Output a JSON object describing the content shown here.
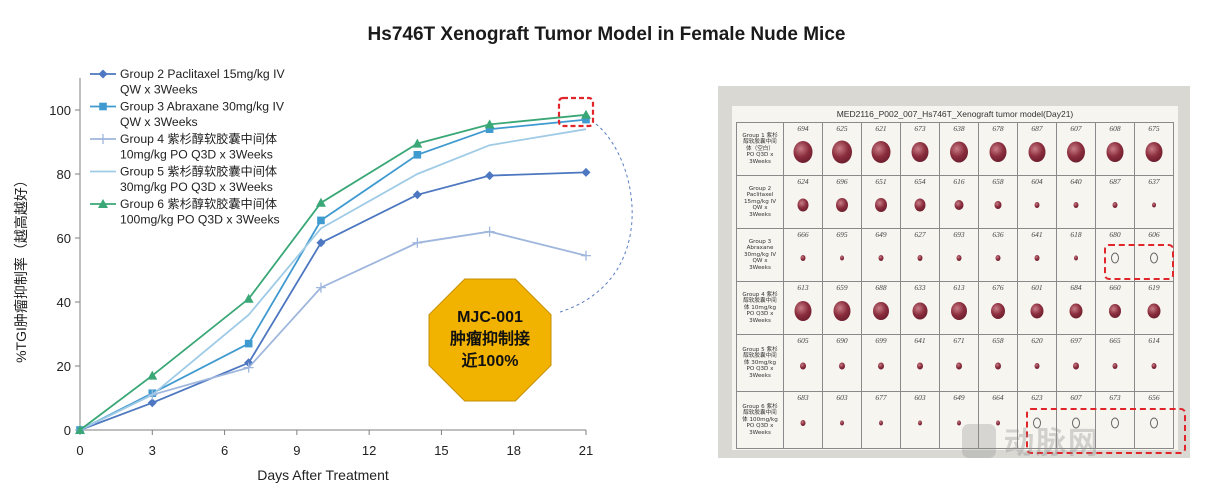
{
  "page": {
    "title": "Hs746T Xenograft Tumor Model in Female Nude Mice"
  },
  "colors": {
    "group2": "#4d77c0",
    "group3": "#3f9ad0",
    "group4": "#9fb6dd",
    "group5": "#9fcbe6",
    "group6": "#3aa776",
    "highlight": "#e0262b",
    "callout": "#f2b200"
  },
  "chart_data": {
    "type": "line",
    "title": "",
    "xlabel": "Days After Treatment",
    "ylabel": "%TGI肿瘤抑制率（越高越好）",
    "x": [
      0,
      3,
      7,
      10,
      14,
      17,
      21
    ],
    "xticks": [
      0,
      3,
      6,
      9,
      12,
      15,
      18,
      21
    ],
    "yticks": [
      0,
      20,
      40,
      60,
      80,
      100
    ],
    "xlim": [
      0,
      21
    ],
    "ylim": [
      0,
      110
    ],
    "legend_position": "top-left",
    "series": [
      {
        "name": "Group 2 Paclitaxel 15mg/kg IV QW x 3Weeks",
        "legend_lines": [
          "Group 2 Paclitaxel 15mg/kg IV",
          "QW x 3Weeks"
        ],
        "marker": "diamond",
        "color_key": "group2",
        "values": [
          0,
          8.5,
          21,
          58.5,
          73.5,
          79.5,
          80.5
        ]
      },
      {
        "name": "Group 3 Abraxane 30mg/kg IV QW x 3Weeks",
        "legend_lines": [
          "Group 3 Abraxane 30mg/kg IV",
          "QW x 3Weeks"
        ],
        "marker": "square",
        "color_key": "group3",
        "values": [
          0,
          11.5,
          27,
          65.5,
          86,
          94,
          97
        ]
      },
      {
        "name": "Group 4 紫杉醇软胶囊中间体 10mg/kg PO Q3D x 3Weeks",
        "legend_lines": [
          "Group 4 紫杉醇软胶囊中间体",
          "10mg/kg PO Q3D x 3Weeks"
        ],
        "marker": "plus",
        "color_key": "group4",
        "values": [
          0,
          11,
          19.5,
          44.5,
          58.5,
          62,
          54.5
        ]
      },
      {
        "name": "Group 5 紫杉醇软胶囊中间体 30mg/kg PO Q3D x 3Weeks",
        "legend_lines": [
          "Group 5 紫杉醇软胶囊中间体",
          "30mg/kg PO Q3D x 3Weeks"
        ],
        "marker": "none",
        "color_key": "group5",
        "values": [
          0,
          11,
          36,
          63,
          80,
          89,
          94
        ]
      },
      {
        "name": "Group 6 紫杉醇软胶囊中间体 100mg/kg PO Q3D x 3Weeks",
        "legend_lines": [
          "Group 6 紫杉醇软胶囊中间体",
          "100mg/kg PO Q3D x 3Weeks"
        ],
        "marker": "triangle",
        "color_key": "group6",
        "values": [
          0,
          17,
          41,
          71,
          89.5,
          95.5,
          98.5
        ]
      }
    ],
    "annotations": [
      {
        "text_lines": [
          "MJC-001",
          "肿瘤抑制接",
          "近100%"
        ],
        "shape": "octagon",
        "points_to": {
          "x": 21,
          "y": 97
        }
      }
    ]
  },
  "photo": {
    "sheet_title": "MED2116_P002_007_Hs746T_Xenograft tumor model(Day21)",
    "rows": [
      {
        "label_lines": [
          "Group 1 紫杉",
          "醇软胶囊中间",
          "体（空白）",
          "PO Q3D x",
          "3Weeks"
        ],
        "ids": [
          "694",
          "625",
          "621",
          "673",
          "638",
          "678",
          "687",
          "607",
          "608",
          "675"
        ],
        "sizes": [
          19,
          20,
          19,
          17,
          18,
          17,
          17,
          18,
          17,
          17
        ]
      },
      {
        "label_lines": [
          "Group 2",
          "Paclitaxel",
          "15mg/kg IV",
          "QW x",
          "3Weeks"
        ],
        "ids": [
          "624",
          "696",
          "651",
          "654",
          "616",
          "658",
          "604",
          "640",
          "687",
          "637"
        ],
        "sizes": [
          11,
          12,
          12,
          11,
          9,
          7,
          5,
          5,
          5,
          4
        ]
      },
      {
        "label_lines": [
          "Group 3",
          "Abraxane",
          "30mg/kg IV",
          "QW x",
          "3Weeks"
        ],
        "ids": [
          "666",
          "695",
          "649",
          "627",
          "693",
          "636",
          "641",
          "618",
          "680",
          "606"
        ],
        "sizes": [
          5,
          4,
          5,
          5,
          5,
          5,
          5,
          4,
          0,
          0
        ]
      },
      {
        "label_lines": [
          "Group 4 紫杉",
          "醇软胶囊中间",
          "体 10mg/kg",
          "PO Q3D x",
          "3Weeks"
        ],
        "ids": [
          "613",
          "659",
          "688",
          "633",
          "613",
          "676",
          "601",
          "684",
          "660",
          "619"
        ],
        "sizes": [
          17,
          17,
          16,
          15,
          16,
          14,
          13,
          13,
          12,
          13
        ]
      },
      {
        "label_lines": [
          "Group 5 紫杉",
          "醇软胶囊中间",
          "体 30mg/kg",
          "PO Q3D x",
          "3Weeks"
        ],
        "ids": [
          "605",
          "690",
          "699",
          "641",
          "671",
          "658",
          "620",
          "697",
          "665",
          "614"
        ],
        "sizes": [
          6,
          6,
          6,
          6,
          6,
          6,
          5,
          6,
          5,
          5
        ]
      },
      {
        "label_lines": [
          "Group 6 紫杉",
          "醇软胶囊中间",
          "体 100mg/kg",
          "PO Q3D x",
          "3Weeks"
        ],
        "ids": [
          "683",
          "603",
          "677",
          "603",
          "649",
          "664",
          "623",
          "607",
          "673",
          "656"
        ],
        "sizes": [
          5,
          4,
          4,
          4,
          4,
          4,
          0,
          0,
          0,
          0
        ]
      }
    ]
  },
  "watermark": {
    "text": "动脉网",
    "badge_letter": "VB"
  }
}
